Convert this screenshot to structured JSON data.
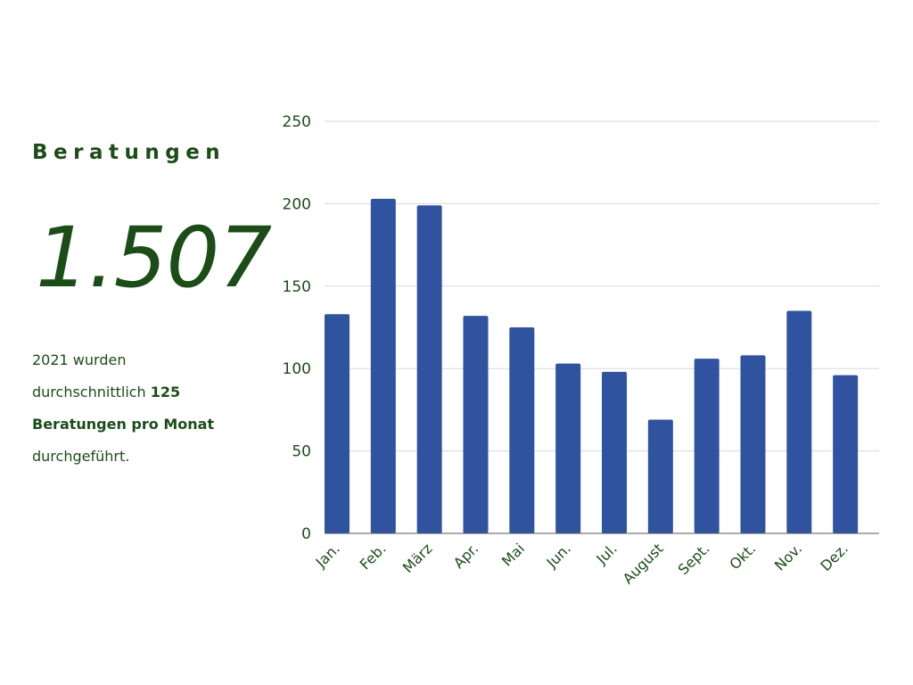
{
  "summary": {
    "heading": "Beratungen",
    "total": "1.507",
    "description": {
      "line1": "2021 wurden",
      "line2_text": "durchschnittlich ",
      "line2_bold": "125",
      "line3_bold": "Beratungen pro Monat",
      "line4": "durchgeführt."
    }
  },
  "colors": {
    "text": "#1b4d17",
    "bar": "#3053a0",
    "grid": "#d9d9d9"
  },
  "chart_data": {
    "type": "bar",
    "categories": [
      "Jan.",
      "Feb.",
      "März",
      "Apr.",
      "Mai",
      "Jun.",
      "Jul.",
      "August",
      "Sept.",
      "Okt.",
      "Nov.",
      "Dez."
    ],
    "values": [
      133,
      203,
      199,
      132,
      125,
      103,
      98,
      69,
      106,
      108,
      135,
      96
    ],
    "ylim": [
      0,
      250
    ],
    "yticks": [
      0,
      50,
      100,
      150,
      200,
      250
    ],
    "title": "",
    "xlabel": "",
    "ylabel": "",
    "grid": true,
    "legend": "none"
  }
}
